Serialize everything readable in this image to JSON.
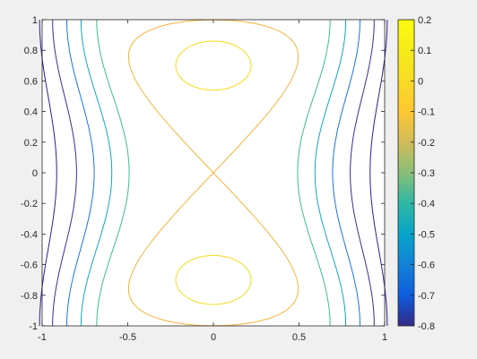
{
  "chart_data": {
    "type": "contour",
    "title": "",
    "xlabel": "",
    "ylabel": "",
    "xlim": [
      -1,
      1
    ],
    "ylim": [
      -1,
      1
    ],
    "x_ticks": [
      "-1",
      "-0.5",
      "0",
      "0.5",
      "1"
    ],
    "y_ticks": [
      "-1",
      "-0.8",
      "-0.6",
      "-0.4",
      "-0.2",
      "0",
      "0.2",
      "0.4",
      "0.6",
      "0.8",
      "1"
    ],
    "function": "z = x^2 * y^2 - x^2 - ... (contour of a figure-eight separatrix surface)",
    "levels": [
      -0.8,
      -0.7,
      -0.6,
      -0.5,
      -0.4,
      -0.3,
      -0.2,
      -0.1,
      0,
      0.1,
      0.2
    ],
    "contour_levels_shown": [
      -0.6,
      -0.4,
      -0.2,
      0,
      0.2
    ],
    "colorbar": {
      "ticks": [
        "0.2",
        "0.1",
        "0",
        "-0.1",
        "-0.2",
        "-0.3",
        "-0.4",
        "-0.5",
        "-0.6",
        "-0.7",
        "-0.8"
      ],
      "range": [
        -0.8,
        0.2
      ],
      "colormap": "parula"
    },
    "grid": false,
    "legend": "none",
    "colors": {
      "axes_bg": "#ffffff",
      "figure_bg": "#f0f0f0",
      "axis": "#262626"
    }
  }
}
